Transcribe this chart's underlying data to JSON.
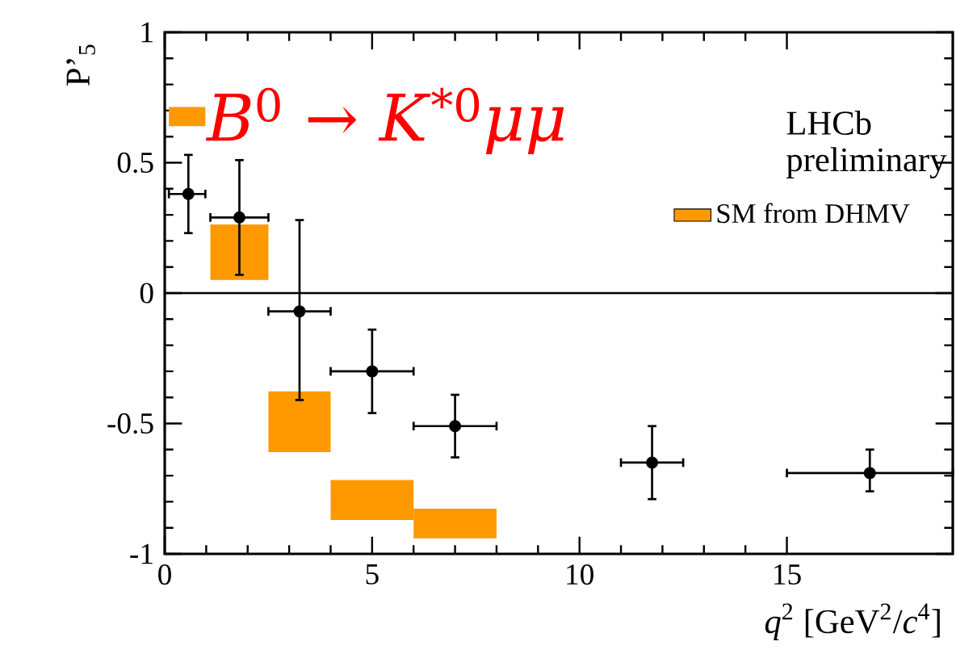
{
  "chart_data": {
    "type": "scatter",
    "xlabel": "*q*$^{2}$ [GeV$^{2}$/*c*$^{4}$]",
    "ylabel": "P’$_{5}$",
    "annotations": [
      "*B*$^{0}$ → *K*$^{*0}$*μμ*",
      "LHCb preliminary"
    ],
    "xlim": [
      0,
      19
    ],
    "ylim": [
      -1,
      1
    ],
    "xticks": [
      0,
      5,
      10,
      15
    ],
    "yticks": [
      -1,
      -0.5,
      0,
      0.5,
      1
    ],
    "ref_lines": [
      {
        "axis": "y",
        "value": 0,
        "color": "#000000"
      }
    ],
    "legend": "top right",
    "marker": "circle",
    "series": [
      {
        "color": "#000000",
        "x": [
          0.57,
          1.8,
          3.25,
          5,
          7,
          11.75,
          17
        ],
        "values": [
          0.38,
          0.29,
          -0.07,
          -0.3,
          -0.51,
          -0.65,
          -0.69
        ],
        "errors": [
          [
            0.23,
            0.53
          ],
          [
            0.07,
            0.51
          ],
          [
            -0.41,
            0.28
          ],
          [
            -0.46,
            -0.14
          ],
          [
            -0.63,
            -0.39
          ],
          [
            -0.79,
            -0.51
          ],
          [
            -0.76,
            -0.6
          ]
        ],
        "xerrors": [
          [
            0.1,
            0.98
          ],
          [
            1.1,
            2.5
          ],
          [
            2.5,
            4
          ],
          [
            4,
            6
          ],
          [
            6,
            8
          ],
          [
            11,
            12.5
          ],
          [
            15,
            19
          ]
        ]
      },
      {
        "type": "bar",
        "name": "SM from DHMV",
        "color": "#ff9900",
        "x": [
          0.54,
          1.8,
          3.25,
          5,
          7
        ],
        "base": [
          0.64,
          0.05,
          -0.61,
          -0.87,
          -0.94
        ],
        "values": [
          0.07,
          0.21,
          0.23,
          0.15,
          0.11
        ],
        "xerrors": [
          [
            0.1,
            0.98
          ],
          [
            1.1,
            2.5
          ],
          [
            2.5,
            4
          ],
          [
            4,
            6
          ],
          [
            6,
            8
          ]
        ]
      }
    ]
  }
}
